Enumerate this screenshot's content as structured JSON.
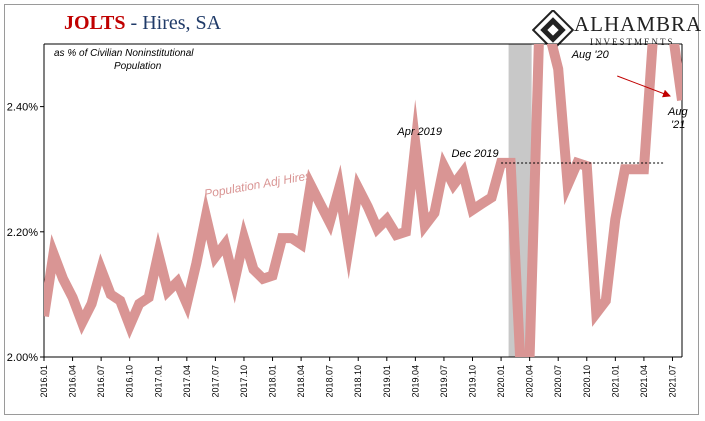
{
  "header": {
    "title_main": "JOLTS",
    "title_rest": " - Hires, SA",
    "logo_name": "ALHAMBRA",
    "logo_sub": "INVESTMENTS"
  },
  "chart_data": {
    "type": "line",
    "subtitle": "as % of Civilian Noninstitutional Population",
    "subtitle_line1": "as % of Civilian Noninstitutional",
    "subtitle_line2": "Population",
    "series": [
      {
        "name": "Population Adj Hires",
        "color": "#d99594",
        "x": [
          "2016.01",
          "2016.02",
          "2016.03",
          "2016.04",
          "2016.05",
          "2016.06",
          "2016.07",
          "2016.08",
          "2016.09",
          "2016.10",
          "2016.11",
          "2016.12",
          "2017.01",
          "2017.02",
          "2017.03",
          "2017.04",
          "2017.05",
          "2017.06",
          "2017.07",
          "2017.08",
          "2017.09",
          "2017.10",
          "2017.11",
          "2017.12",
          "2018.01",
          "2018.02",
          "2018.03",
          "2018.04",
          "2018.05",
          "2018.06",
          "2018.07",
          "2018.08",
          "2018.09",
          "2018.10",
          "2018.11",
          "2018.12",
          "2019.01",
          "2019.02",
          "2019.03",
          "2019.04",
          "2019.05",
          "2019.06",
          "2019.07",
          "2019.08",
          "2019.09",
          "2019.10",
          "2019.11",
          "2019.12",
          "2020.01",
          "2020.02",
          "2020.03",
          "2020.04",
          "2020.05",
          "2020.06",
          "2020.07",
          "2020.08",
          "2020.09",
          "2020.10",
          "2020.11",
          "2020.12",
          "2021.01",
          "2021.02",
          "2021.03",
          "2021.04",
          "2021.05",
          "2021.06",
          "2021.07",
          "2021.08"
        ],
        "values": [
          2.065,
          2.165,
          2.125,
          2.095,
          2.055,
          2.085,
          2.14,
          2.1,
          2.09,
          2.05,
          2.085,
          2.095,
          2.165,
          2.105,
          2.12,
          2.085,
          2.15,
          2.225,
          2.16,
          2.18,
          2.12,
          2.19,
          2.14,
          2.125,
          2.13,
          2.19,
          2.19,
          2.18,
          2.275,
          2.245,
          2.215,
          2.27,
          2.175,
          2.27,
          2.24,
          2.205,
          2.22,
          2.195,
          2.2,
          2.34,
          2.21,
          2.23,
          2.305,
          2.275,
          2.295,
          2.235,
          2.245,
          2.255,
          2.31,
          2.31,
          2.0,
          2.0,
          2.52,
          2.52,
          2.46,
          2.275,
          2.31,
          2.305,
          2.07,
          2.09,
          2.22,
          2.3,
          2.3,
          2.3,
          2.52,
          2.52,
          2.52,
          2.41
        ]
      }
    ],
    "x_ticks": [
      "2016.01",
      "2016.04",
      "2016.07",
      "2016.10",
      "2017.01",
      "2017.04",
      "2017.07",
      "2017.10",
      "2018.01",
      "2018.04",
      "2018.07",
      "2018.10",
      "2019.01",
      "2019.04",
      "2019.07",
      "2019.10",
      "2020.01",
      "2020.04",
      "2020.07",
      "2020.10",
      "2021.01",
      "2021.04",
      "2021.07"
    ],
    "y_ticks": [
      2.0,
      2.2,
      2.4
    ],
    "y_tick_labels": [
      "2.00%",
      "2.20%",
      "2.40%"
    ],
    "ylim": [
      2.0,
      2.5
    ],
    "recession_band": [
      "2020.02",
      "2020.04"
    ],
    "reference_line": {
      "value": 2.31,
      "from": "2020.01",
      "to": "2021.06",
      "style": "dashed"
    },
    "annotations": {
      "apr2019": "Apr 2019",
      "dec2019": "Dec 2019",
      "aug20": "Aug '20",
      "aug21_line1": "Aug",
      "aug21_line2": "'21",
      "series_label": "Population Adj Hires"
    },
    "grid": false
  }
}
